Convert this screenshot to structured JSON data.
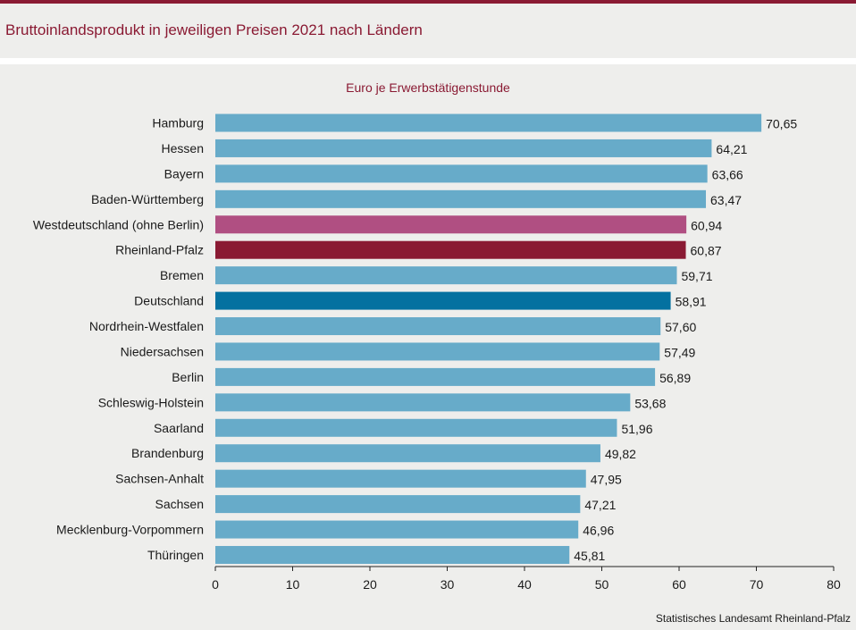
{
  "header": {
    "title": "Bruttoinlandsprodukt in jeweiligen Preisen 2021 nach Ländern"
  },
  "footer": {
    "source": "Statistisches Landesamt  Rheinland-Pfalz"
  },
  "colors": {
    "accent": "#8a1a33",
    "bar_default": "#67abc9",
    "bar_westdeutschland": "#b04f82",
    "bar_rheinland_pfalz": "#8a1a33",
    "bar_deutschland": "#0471a0"
  },
  "chart_data": {
    "type": "bar",
    "orientation": "horizontal",
    "title": "Euro je Erwerbstätigenstunde",
    "xlabel": "",
    "ylabel": "",
    "xlim": [
      0,
      80
    ],
    "xticks": [
      0,
      10,
      20,
      30,
      40,
      50,
      60,
      70,
      80
    ],
    "categories": [
      "Hamburg",
      "Hessen",
      "Bayern",
      "Baden-Württemberg",
      "Westdeutschland (ohne Berlin)",
      "Rheinland-Pfalz",
      "Bremen",
      "Deutschland",
      "Nordrhein-Westfalen",
      "Niedersachsen",
      "Berlin",
      "Schleswig-Holstein",
      "Saarland",
      "Brandenburg",
      "Sachsen-Anhalt",
      "Sachsen",
      "Mecklenburg-Vorpommern",
      "Thüringen"
    ],
    "values": [
      70.65,
      64.21,
      63.66,
      63.47,
      60.94,
      60.87,
      59.71,
      58.91,
      57.6,
      57.49,
      56.89,
      53.68,
      51.96,
      49.82,
      47.95,
      47.21,
      46.96,
      45.81
    ],
    "value_labels": [
      "70,65",
      "64,21",
      "63,66",
      "63,47",
      "60,94",
      "60,87",
      "59,71",
      "58,91",
      "57,60",
      "57,49",
      "56,89",
      "53,68",
      "51,96",
      "49,82",
      "47,95",
      "47,21",
      "46,96",
      "45,81"
    ],
    "highlight": {
      "Westdeutschland (ohne Berlin)": "bar_westdeutschland",
      "Rheinland-Pfalz": "bar_rheinland_pfalz",
      "Deutschland": "bar_deutschland"
    },
    "grid": false,
    "legend": "none"
  }
}
